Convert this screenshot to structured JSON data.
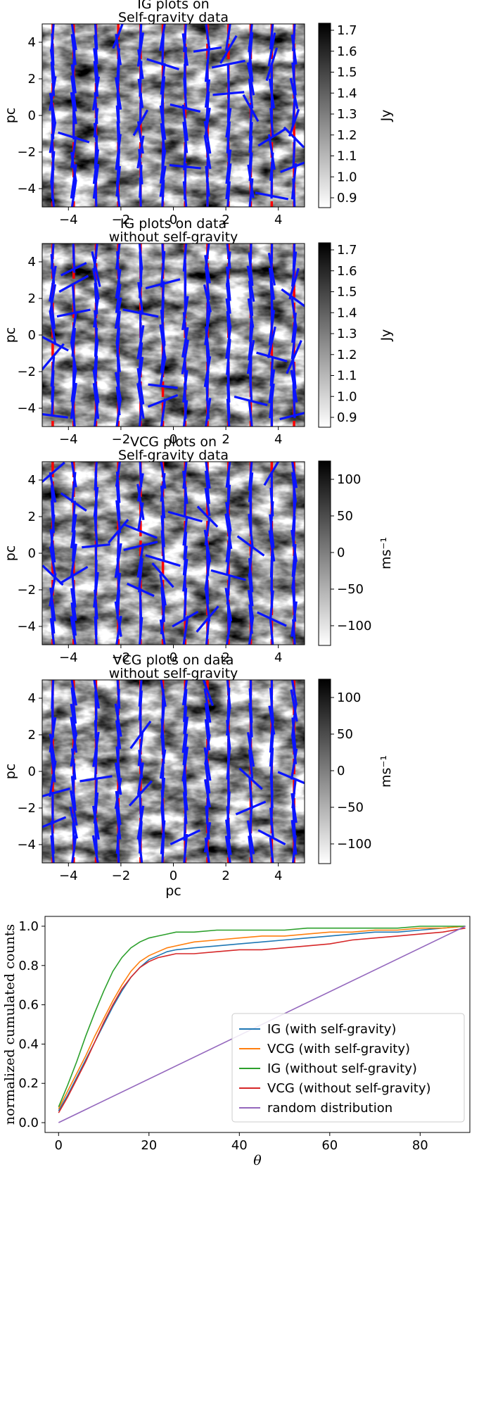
{
  "panels": [
    {
      "title_line1": "IG plots on",
      "title_line2": "Self-gravity data",
      "ylabel": "pc",
      "xlabel": "",
      "xticks": [
        "−4",
        "−2",
        "0",
        "2",
        "4"
      ],
      "yticks": [
        "4",
        "2",
        "0",
        "−2",
        "−4"
      ],
      "cbar_label": "Jy",
      "cbar_ticks": [
        "1.7",
        "1.6",
        "1.5",
        "1.4",
        "1.3",
        "1.2",
        "1.1",
        "1.0",
        "0.9"
      ],
      "seed": 11
    },
    {
      "title_line1": "IG plots on data",
      "title_line2": "without self-gravity",
      "ylabel": "pc",
      "xlabel": "",
      "xticks": [
        "−4",
        "−2",
        "0",
        "2",
        "4"
      ],
      "yticks": [
        "4",
        "2",
        "0",
        "−2",
        "−4"
      ],
      "cbar_label": "Jy",
      "cbar_ticks": [
        "1.7",
        "1.6",
        "1.5",
        "1.4",
        "1.3",
        "1.2",
        "1.1",
        "1.0",
        "0.9"
      ],
      "seed": 23
    },
    {
      "title_line1": "VCG plots on",
      "title_line2": "Self-gravity data",
      "ylabel": "pc",
      "xlabel": "",
      "xticks": [
        "−4",
        "−2",
        "0",
        "2",
        "4"
      ],
      "yticks": [
        "4",
        "2",
        "0",
        "−2",
        "−4"
      ],
      "cbar_label": "ms⁻¹",
      "cbar_ticks": [
        "100",
        "50",
        "0",
        "−50",
        "−100"
      ],
      "seed": 37
    },
    {
      "title_line1": "VCG plots on data",
      "title_line2": "without self-gravity",
      "ylabel": "pc",
      "xlabel": "pc",
      "xticks": [
        "−4",
        "−2",
        "0",
        "2",
        "4"
      ],
      "yticks": [
        "4",
        "2",
        "0",
        "−2",
        "−4"
      ],
      "cbar_label": "ms⁻¹",
      "cbar_ticks": [
        "100",
        "50",
        "0",
        "−50",
        "−100"
      ],
      "seed": 53
    }
  ],
  "chart_data": {
    "type": "line",
    "title": "",
    "xlabel": "θ",
    "ylabel": "normalized cumulated counts",
    "xlim": [
      -3,
      91
    ],
    "ylim": [
      -0.05,
      1.05
    ],
    "xticks": [
      "0",
      "20",
      "40",
      "60",
      "80"
    ],
    "yticks": [
      "0.0",
      "0.2",
      "0.4",
      "0.6",
      "0.8",
      "1.0"
    ],
    "legend_position": "lower-right",
    "grid": false,
    "series": [
      {
        "name": "IG (with self-gravity)",
        "color": "#1f77b4",
        "x": [
          0,
          2,
          4,
          6,
          8,
          10,
          12,
          14,
          16,
          18,
          20,
          22,
          24,
          26,
          30,
          35,
          40,
          45,
          50,
          55,
          60,
          65,
          70,
          75,
          80,
          85,
          90
        ],
        "y": [
          0.06,
          0.14,
          0.23,
          0.32,
          0.41,
          0.5,
          0.59,
          0.67,
          0.74,
          0.79,
          0.83,
          0.85,
          0.87,
          0.88,
          0.89,
          0.9,
          0.91,
          0.92,
          0.93,
          0.94,
          0.95,
          0.96,
          0.97,
          0.97,
          0.98,
          0.99,
          1.0
        ]
      },
      {
        "name": "VCG (with self-gravity)",
        "color": "#ff7f0e",
        "x": [
          0,
          2,
          4,
          6,
          8,
          10,
          12,
          14,
          16,
          18,
          20,
          22,
          24,
          26,
          30,
          35,
          40,
          45,
          50,
          55,
          60,
          65,
          70,
          75,
          80,
          85,
          90
        ],
        "y": [
          0.07,
          0.16,
          0.25,
          0.34,
          0.44,
          0.53,
          0.62,
          0.7,
          0.77,
          0.82,
          0.85,
          0.87,
          0.89,
          0.9,
          0.92,
          0.93,
          0.94,
          0.95,
          0.95,
          0.96,
          0.97,
          0.97,
          0.98,
          0.98,
          0.99,
          0.99,
          1.0
        ]
      },
      {
        "name": "IG (without self-gravity)",
        "color": "#2ca02c",
        "x": [
          0,
          2,
          4,
          6,
          8,
          10,
          12,
          14,
          16,
          18,
          20,
          22,
          24,
          26,
          30,
          35,
          40,
          45,
          50,
          55,
          60,
          65,
          70,
          75,
          80,
          85,
          90
        ],
        "y": [
          0.08,
          0.19,
          0.31,
          0.44,
          0.56,
          0.67,
          0.77,
          0.84,
          0.89,
          0.92,
          0.94,
          0.95,
          0.96,
          0.97,
          0.97,
          0.98,
          0.98,
          0.98,
          0.98,
          0.99,
          0.99,
          0.99,
          0.99,
          0.99,
          1.0,
          1.0,
          1.0
        ]
      },
      {
        "name": "VCG (without self-gravity)",
        "color": "#d62728",
        "x": [
          0,
          2,
          4,
          6,
          8,
          10,
          12,
          14,
          16,
          18,
          20,
          22,
          24,
          26,
          30,
          35,
          40,
          45,
          50,
          55,
          60,
          65,
          70,
          75,
          80,
          85,
          90
        ],
        "y": [
          0.05,
          0.13,
          0.22,
          0.31,
          0.41,
          0.51,
          0.6,
          0.68,
          0.74,
          0.79,
          0.82,
          0.84,
          0.85,
          0.86,
          0.86,
          0.87,
          0.88,
          0.88,
          0.89,
          0.9,
          0.91,
          0.93,
          0.94,
          0.95,
          0.96,
          0.97,
          0.99
        ]
      },
      {
        "name": "random distribution",
        "color": "#9467bd",
        "x": [
          0,
          90
        ],
        "y": [
          0.0,
          1.0
        ]
      }
    ]
  }
}
